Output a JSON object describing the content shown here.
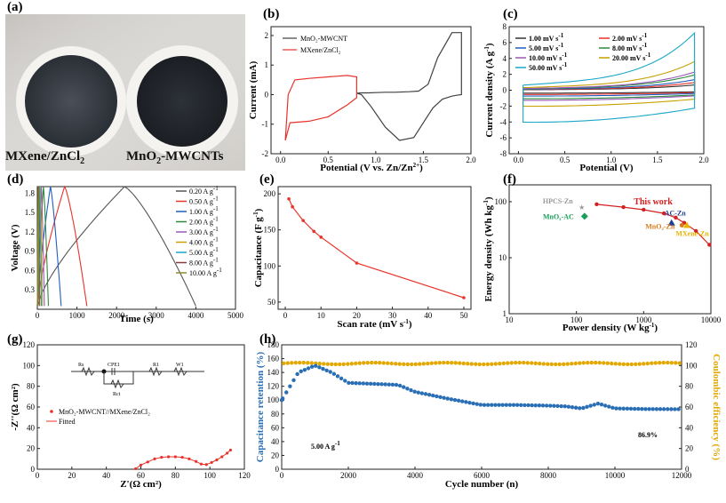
{
  "chart_data": [
    {
      "panel": "(a)",
      "type": "image",
      "photo_labels": [
        "MXene/ZnCl",
        "2",
        "MnO",
        "2",
        "-MWCNTs"
      ]
    },
    {
      "panel": "(b)",
      "type": "line",
      "xlabel": [
        "Potential (V ",
        "vs.",
        " Zn/Zn",
        "2+",
        ")"
      ],
      "ylabel": "Current (mA)",
      "xlim": [
        -0.1,
        2.0
      ],
      "ylim": [
        -2.0,
        2.3
      ],
      "xticks": [
        0.0,
        0.5,
        1.0,
        1.5,
        2.0
      ],
      "yticks": [
        -2,
        -1,
        0,
        1,
        2
      ],
      "legend": [
        "MnO₂-MWCNT",
        "MXene/ZnCl₂"
      ],
      "colors": [
        "#404040",
        "#e8332a"
      ],
      "series": [
        {
          "name": "MnO₂-MWCNT",
          "x": [
            0.8,
            0.85,
            0.95,
            1.1,
            1.25,
            1.4,
            1.5,
            1.6,
            1.7,
            1.8,
            1.85,
            1.9,
            1.9,
            1.8,
            1.65,
            1.55,
            1.45,
            1.35,
            1.2,
            1.1,
            1.0,
            0.92,
            0.85,
            0.8
          ],
          "y": [
            0.05,
            0.0,
            -0.4,
            -1.1,
            -1.55,
            -1.45,
            -0.95,
            -0.45,
            -0.15,
            -0.05,
            -0.02,
            0.0,
            2.1,
            2.1,
            1.25,
            0.35,
            0.12,
            0.1,
            0.08,
            0.08,
            0.07,
            0.06,
            0.06,
            0.05
          ]
        },
        {
          "name": "MXene/ZnCl₂",
          "x": [
            0.05,
            0.1,
            0.3,
            0.5,
            0.7,
            0.8,
            0.8,
            0.7,
            0.5,
            0.3,
            0.15,
            0.08,
            0.05
          ],
          "y": [
            -1.55,
            -0.95,
            -0.9,
            -0.75,
            -0.35,
            -0.1,
            0.6,
            0.65,
            0.6,
            0.55,
            0.5,
            0.0,
            -1.55
          ]
        }
      ]
    },
    {
      "panel": "(c)",
      "type": "line",
      "xlabel": "Potential (V)",
      "ylabel": [
        "Current density (A g",
        "-1",
        ")"
      ],
      "xlim": [
        -0.1,
        2.0
      ],
      "ylim": [
        -8,
        8
      ],
      "xticks": [
        0.0,
        0.5,
        1.0,
        1.5,
        2.0
      ],
      "yticks": [
        -8,
        -6,
        -4,
        -2,
        0,
        2,
        4,
        6,
        8
      ],
      "legend": [
        {
          "label": "1.00 mV s",
          "sup": "-1",
          "color": "#333333"
        },
        {
          "label": "2.00 mV s",
          "sup": "-1",
          "color": "#e8332a"
        },
        {
          "label": "5.00 mV s",
          "sup": "-1",
          "color": "#1f5fbf"
        },
        {
          "label": "8.00 mV s",
          "sup": "-1",
          "color": "#2e8b3e"
        },
        {
          "label": "10.00 mV s",
          "sup": "-1",
          "color": "#9b59b6"
        },
        {
          "label": "20.00 mV s",
          "sup": "-1",
          "color": "#c8a000"
        },
        {
          "label": "50.00 mV s",
          "sup": "-1",
          "color": "#1aa6c8"
        }
      ],
      "series": [
        {
          "name": "1.00 mV s-1",
          "color": "#333333",
          "amp": 0.55
        },
        {
          "name": "2.00 mV s-1",
          "color": "#e8332a",
          "amp": 0.8
        },
        {
          "name": "5.00 mV s-1",
          "color": "#1f5fbf",
          "amp": 1.1
        },
        {
          "name": "8.00 mV s-1",
          "color": "#2e8b3e",
          "amp": 1.6
        },
        {
          "name": "10.00 mV s-1",
          "color": "#9b59b6",
          "amp": 1.9
        },
        {
          "name": "20.00 mV s-1",
          "color": "#c8a000",
          "amp": 3.0
        },
        {
          "name": "50.00 mV s-1",
          "color": "#1aa6c8",
          "amp": 6.0
        }
      ]
    },
    {
      "panel": "(d)",
      "type": "line",
      "xlabel": "Time (s)",
      "ylabel": "Voltage (V)",
      "xlim": [
        0,
        5000
      ],
      "ylim": [
        0,
        1.9
      ],
      "xticks": [
        0,
        1000,
        2000,
        3000,
        4000,
        5000
      ],
      "yticks": [
        0.3,
        0.6,
        0.9,
        1.2,
        1.5,
        1.8
      ],
      "series": [
        {
          "name": "0.20 A g-1",
          "label": "0.20 A g",
          "sup": "-1",
          "color": "#555555",
          "t_end": 4000
        },
        {
          "name": "0.50 A g-1",
          "label": "0.50 A g",
          "sup": "-1",
          "color": "#e8332a",
          "t_end": 1250
        },
        {
          "name": "1.00 A g-1",
          "label": "1.00 A g",
          "sup": "-1",
          "color": "#1f5fbf",
          "t_end": 600
        },
        {
          "name": "2.00 A g-1",
          "label": "2.00 A g",
          "sup": "-1",
          "color": "#2e8b3e",
          "t_end": 280
        },
        {
          "name": "3.00 A g-1",
          "label": "3.00 A g",
          "sup": "-1",
          "color": "#9b59b6",
          "t_end": 180
        },
        {
          "name": "4.00 A g-1",
          "label": "4.00 A g",
          "sup": "-1",
          "color": "#c8a000",
          "t_end": 130
        },
        {
          "name": "5.00 A g-1",
          "label": "5.00 A g",
          "sup": "-1",
          "color": "#1aa6c8",
          "t_end": 100
        },
        {
          "name": "8.00 A g-1",
          "label": "8.00 A g",
          "sup": "-1",
          "color": "#8b3a3a",
          "t_end": 60
        },
        {
          "name": "10.00 A g-1",
          "label": "10.00 A g",
          "sup": "-1",
          "color": "#8b8b2a",
          "t_end": 45
        }
      ]
    },
    {
      "panel": "(e)",
      "type": "line",
      "xlabel": [
        "Scan rate (mV s",
        "-1",
        ")"
      ],
      "ylabel": [
        "Capacitance (F g",
        "-1",
        ")"
      ],
      "xlim": [
        -2,
        52
      ],
      "ylim": [
        40,
        210
      ],
      "xticks": [
        0,
        10,
        20,
        30,
        40,
        50
      ],
      "yticks": [
        50,
        100,
        150,
        200
      ],
      "color": "#e8332a",
      "x": [
        1,
        2,
        5,
        8,
        10,
        20,
        50
      ],
      "y": [
        193,
        182,
        163,
        148,
        140,
        104,
        56
      ]
    },
    {
      "panel": "(f)",
      "type": "scatter",
      "xlabel": [
        "Power density (W kg",
        "-1",
        ")"
      ],
      "ylabel": [
        "Energy density (Wh kg",
        "-1",
        ")"
      ],
      "xscale": "log",
      "yscale": "log",
      "xlim": [
        10,
        10000
      ],
      "ylim": [
        1,
        200
      ],
      "xticks": [
        10,
        100,
        1000,
        10000
      ],
      "xticklabels": [
        "10",
        "100",
        "1000",
        "10000"
      ],
      "yticks": [
        1,
        10,
        100
      ],
      "yticklabels": [
        "1",
        "10",
        "100"
      ],
      "this_work": {
        "label": "This work",
        "color": "#d42020",
        "x": [
          200,
          500,
          1000,
          2000,
          3000,
          4000,
          6000,
          9500
        ],
        "y": [
          90,
          80,
          72,
          62,
          52,
          42,
          30,
          17
        ]
      },
      "references": [
        {
          "label": "HPCS-Zn",
          "x": 100,
          "y": 80,
          "color": "#999999",
          "marker": "star"
        },
        {
          "label": "MnO₂-AC",
          "x": 110,
          "y": 55,
          "color": "#1a9e5a",
          "marker": "diamond"
        },
        {
          "label": "AC-Zn",
          "x": 2600,
          "y": 42,
          "color": "#1f3f8f",
          "marker": "triangle"
        },
        {
          "label": "MnO₂-Zn",
          "x": 3700,
          "y": 38,
          "color": "#d97a1a",
          "marker": "circle"
        },
        {
          "label": "MXene-Zn",
          "x": 4400,
          "y": 38,
          "color": "#e8b400",
          "marker": "triangle"
        }
      ]
    },
    {
      "panel": "(g)",
      "type": "scatter",
      "xlabel": "Z'(Ω cm²)",
      "ylabel": "-Z''(Ω cm²)",
      "xlim": [
        0,
        120
      ],
      "ylim": [
        0,
        120
      ],
      "xticks": [
        0,
        20,
        40,
        60,
        80,
        100,
        120
      ],
      "yticks": [
        0,
        20,
        40,
        60,
        80,
        100,
        120
      ],
      "legend": [
        "MnO₂-MWCNT//MXene/ZnCl₂",
        "Fitted"
      ],
      "circuit": [
        "Rs",
        "CPE1",
        "R1",
        "W1",
        "Rct"
      ],
      "colors": [
        "#e8332a",
        "#e8332a"
      ],
      "x": [
        57,
        60,
        64,
        68,
        72,
        76,
        80,
        84,
        88,
        92,
        95,
        98,
        101,
        104,
        107,
        110,
        112
      ],
      "y": [
        0.5,
        4,
        7,
        10,
        11.5,
        12,
        12,
        11.5,
        10,
        7.5,
        5,
        4.5,
        6.5,
        9,
        12,
        15.5,
        18.5
      ]
    },
    {
      "panel": "(h)",
      "type": "scatter",
      "xlabel": "Cycle number (n)",
      "ylabel": "Capacitance retention (%)",
      "y2label": "Coulombic efficiency (%)",
      "xlim": [
        0,
        12000
      ],
      "ylim": [
        0,
        180
      ],
      "y2lim": [
        0,
        120
      ],
      "xticks": [
        0,
        2000,
        4000,
        6000,
        8000,
        10000,
        12000
      ],
      "yticks": [
        0,
        20,
        40,
        60,
        80,
        100,
        120,
        140,
        160,
        180
      ],
      "y2ticks": [
        0,
        20,
        40,
        60,
        80,
        100,
        120
      ],
      "annotation_rate": [
        "5.00 A g",
        "-1"
      ],
      "annotation_final": "86.9%",
      "colors": [
        "#2a6fb5",
        "#e2a800"
      ],
      "retention_x": [
        0,
        500,
        1000,
        1500,
        2000,
        3000,
        3500,
        4000,
        5000,
        6000,
        7000,
        8000,
        8500,
        9000,
        9500,
        10000,
        11000,
        12000
      ],
      "retention_y": [
        100,
        140,
        150,
        140,
        125,
        123,
        122,
        112,
        102,
        93,
        93,
        92,
        91,
        88,
        95,
        88,
        87,
        86.9
      ],
      "coulombic_y": 102
    }
  ]
}
